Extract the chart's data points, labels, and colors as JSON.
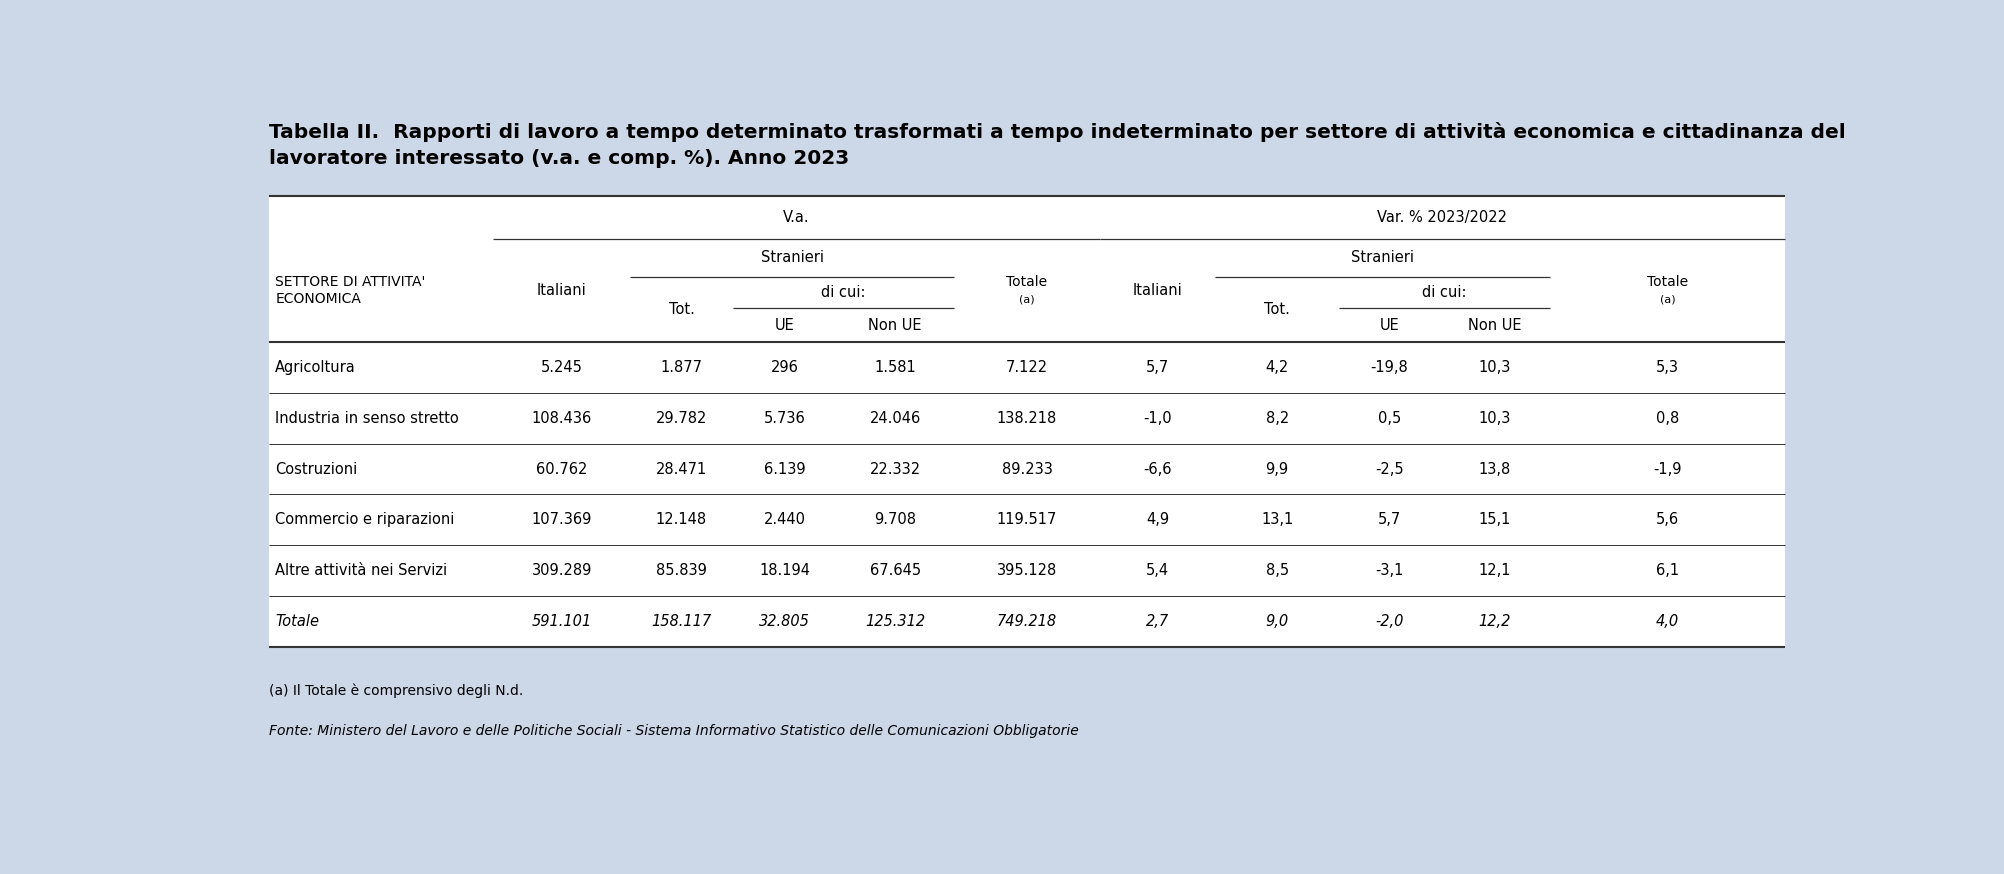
{
  "title_line1": "Tabella II.  Rapporti di lavoro a tempo determinato trasformati a tempo indeterminato per settore di attività economica e cittadinanza del",
  "title_line2": "lavoratore interessato (v.a. e comp. %). Anno 2023",
  "background_color": "#ccd7e8",
  "table_background": "#ffffff",
  "rows": [
    [
      "Agricoltura",
      "5.245",
      "1.877",
      "296",
      "1.581",
      "7.122",
      "5,7",
      "4,2",
      "-19,8",
      "10,3",
      "5,3"
    ],
    [
      "Industria in senso stretto",
      "108.436",
      "29.782",
      "5.736",
      "24.046",
      "138.218",
      "-1,0",
      "8,2",
      "0,5",
      "10,3",
      "0,8"
    ],
    [
      "Costruzioni",
      "60.762",
      "28.471",
      "6.139",
      "22.332",
      "89.233",
      "-6,6",
      "9,9",
      "-2,5",
      "13,8",
      "-1,9"
    ],
    [
      "Commercio e riparazioni",
      "107.369",
      "12.148",
      "2.440",
      "9.708",
      "119.517",
      "4,9",
      "13,1",
      "5,7",
      "15,1",
      "5,6"
    ],
    [
      "Altre attività nei Servizi",
      "309.289",
      "85.839",
      "18.194",
      "67.645",
      "395.128",
      "5,4",
      "8,5",
      "-3,1",
      "12,1",
      "6,1"
    ],
    [
      "Totale",
      "591.101",
      "158.117",
      "32.805",
      "125.312",
      "749.218",
      "2,7",
      "9,0",
      "-2,0",
      "12,2",
      "4,0"
    ]
  ],
  "footnote1": "(a) Il Totale è comprensivo degli N.d.",
  "footnote2": "Fonte: Ministero del Lavoro e delle Politiche Sociali - Sistema Informativo Statistico delle Comunicazioni Obbligatorie",
  "col_boundaries": [
    0.0,
    0.148,
    0.238,
    0.306,
    0.374,
    0.452,
    0.548,
    0.624,
    0.706,
    0.772,
    0.845,
    1.0
  ],
  "va_span": [
    1,
    5
  ],
  "var_span": [
    6,
    10
  ],
  "stranieri_va_span": [
    2,
    4
  ],
  "stranieri_var_span": [
    7,
    9
  ],
  "dicui_va_span": [
    3,
    4
  ],
  "dicui_var_span": [
    8,
    9
  ],
  "header_fs": 10.5,
  "data_fs": 10.5,
  "title_fs": 14.5
}
